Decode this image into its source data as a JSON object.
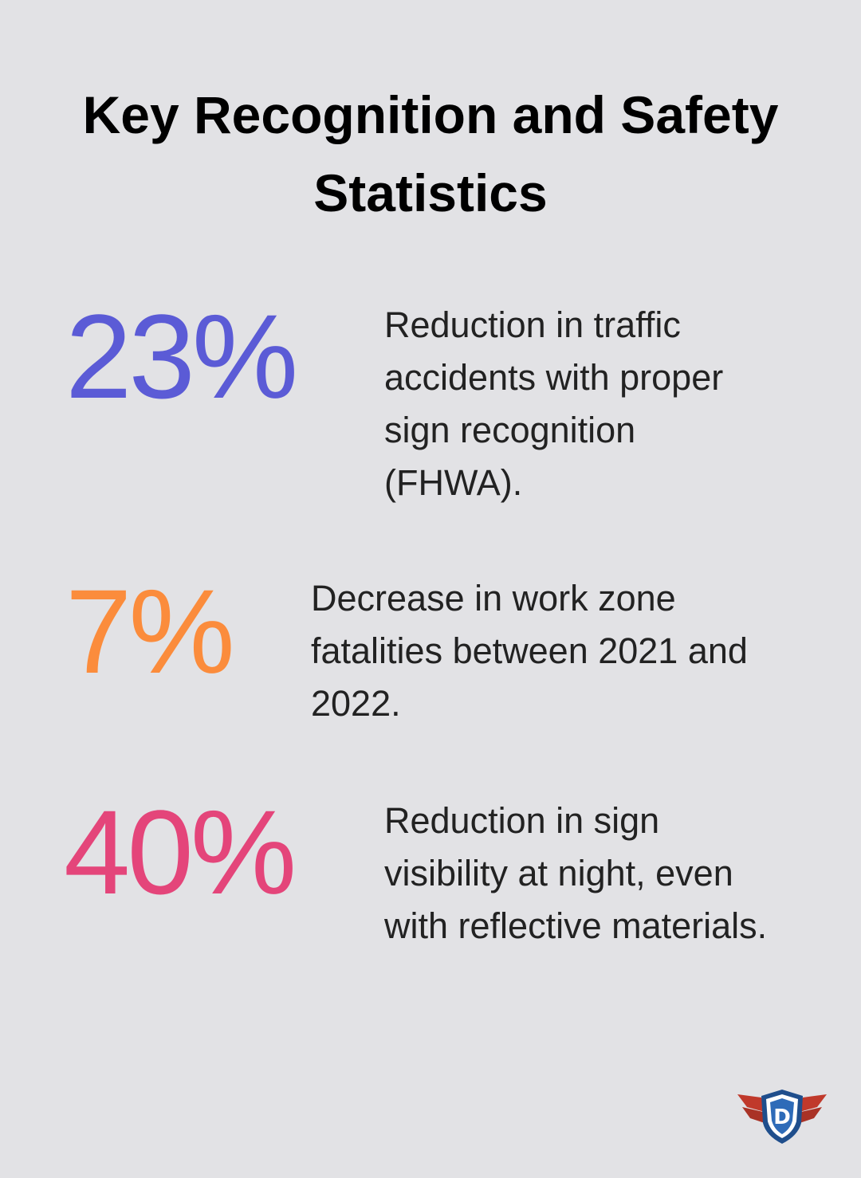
{
  "title": "Key Recognition and Safety Statistics",
  "stats": [
    {
      "value": "23%",
      "text": "Reduction in traffic accidents with proper sign recognition (FHWA)."
    },
    {
      "value": "7%",
      "text": "Decrease in work zone fatalities between 2021 and 2022."
    },
    {
      "value": "40%",
      "text": "Reduction in sign visibility at night, even with reflective materials."
    }
  ]
}
